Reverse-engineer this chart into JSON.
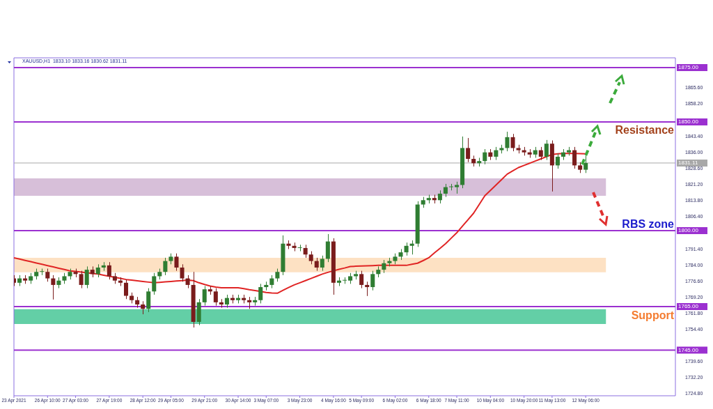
{
  "chart_data": {
    "type": "candlestick",
    "categories": [
      "23 Apr 2021",
      null,
      null,
      null,
      null,
      null,
      "26 Apr 10:00",
      null,
      null,
      null,
      null,
      "27 Apr 03:00",
      null,
      null,
      null,
      null,
      null,
      "27 Apr 19:00",
      null,
      null,
      null,
      null,
      null,
      "28 Apr 12:00",
      null,
      null,
      null,
      null,
      "29 Apr 05:00",
      null,
      null,
      null,
      null,
      null,
      "29 Apr 21:00",
      null,
      null,
      null,
      null,
      null,
      "30 Apr 14:00",
      null,
      null,
      null,
      null,
      "3 May 07:00",
      null,
      null,
      null,
      null,
      null,
      "3 May 23:00",
      null,
      null,
      null,
      null,
      null,
      "4 May 16:00",
      null,
      null,
      null,
      null,
      "5 May 09:00",
      null,
      null,
      null,
      null,
      null,
      "6 May 02:00",
      null,
      null,
      null,
      null,
      null,
      "6 May 18:00",
      null,
      null,
      null,
      null,
      "7 May 11:00",
      null,
      null,
      null,
      null,
      null,
      "10 May 04:00",
      null,
      null,
      null,
      null,
      null,
      "10 May 20:00",
      null,
      null,
      null,
      null,
      "11 May 13:00",
      null,
      null,
      null,
      null,
      null,
      "12 May 06:00",
      null,
      null,
      null,
      null,
      null,
      null,
      null,
      null,
      null,
      null,
      null,
      null,
      null,
      null,
      null,
      null
    ],
    "series": [
      {
        "ohlc": [
          [
            1778,
            1779.5,
            1774.5,
            1776
          ],
          [
            1776,
            1779.5,
            1774.5,
            1778
          ],
          [
            1778,
            1779.5,
            1775.5,
            1777
          ],
          [
            1777,
            1780.5,
            1775.5,
            1779
          ],
          [
            1779,
            1782.5,
            1777.5,
            1781
          ],
          [
            1781,
            1782.5,
            1779.5,
            1781
          ],
          [
            1781,
            1782.5,
            1776.5,
            1778
          ],
          [
            1778,
            1779.5,
            1768.3,
            1775
          ],
          [
            1775,
            1778.5,
            1773.5,
            1777
          ],
          [
            1777,
            1780.5,
            1775.5,
            1779
          ],
          [
            1779,
            1782.5,
            1777.5,
            1781
          ],
          [
            1781,
            1782.5,
            1778.5,
            1780
          ],
          [
            1780,
            1781.5,
            1773.5,
            1775
          ],
          [
            1775,
            1783.5,
            1773.5,
            1782
          ],
          [
            1782,
            1783.5,
            1778.5,
            1780
          ],
          [
            1780,
            1784.5,
            1778.5,
            1783
          ],
          [
            1783,
            1785.5,
            1781.5,
            1784
          ],
          [
            1784,
            1785.5,
            1777.5,
            1779
          ],
          [
            1779,
            1780.5,
            1775.5,
            1777
          ],
          [
            1777,
            1778.5,
            1774.5,
            1776
          ],
          [
            1776,
            1777.5,
            1768.5,
            1770
          ],
          [
            1770,
            1771.5,
            1766.5,
            1768
          ],
          [
            1768,
            1769.5,
            1764.5,
            1766
          ],
          [
            1766,
            1767.5,
            1761.5,
            1764
          ],
          [
            1764,
            1773.5,
            1762.5,
            1772
          ],
          [
            1772,
            1780.5,
            1770.5,
            1779
          ],
          [
            1779,
            1782.5,
            1777.5,
            1781
          ],
          [
            1781,
            1787.5,
            1779.5,
            1786
          ],
          [
            1786,
            1789.5,
            1784.5,
            1788
          ],
          [
            1788,
            1789.5,
            1781.5,
            1783
          ],
          [
            1783,
            1784.5,
            1776.5,
            1778
          ],
          [
            1778,
            1779.5,
            1773.5,
            1775
          ],
          [
            1775,
            1781,
            1755.4,
            1758
          ],
          [
            1758,
            1768.5,
            1756.5,
            1767
          ],
          [
            1767,
            1774.5,
            1765.5,
            1773
          ],
          [
            1773,
            1774.5,
            1770.5,
            1772
          ],
          [
            1772,
            1773.5,
            1765.5,
            1767
          ],
          [
            1767,
            1768.5,
            1764.5,
            1766
          ],
          [
            1766,
            1770.5,
            1764.5,
            1769
          ],
          [
            1769,
            1770.5,
            1766.5,
            1768
          ],
          [
            1768,
            1770.5,
            1766.5,
            1769
          ],
          [
            1769,
            1770.5,
            1766.5,
            1768
          ],
          [
            1768,
            1769.5,
            1764,
            1767
          ],
          [
            1767,
            1769.5,
            1765.5,
            1768
          ],
          [
            1768,
            1775.5,
            1766.5,
            1774
          ],
          [
            1774,
            1776.5,
            1772.5,
            1775
          ],
          [
            1775,
            1779.5,
            1773.5,
            1778
          ],
          [
            1778,
            1782.5,
            1776.5,
            1781
          ],
          [
            1781,
            1797.8,
            1779.5,
            1794
          ],
          [
            1794,
            1795.5,
            1791.5,
            1793
          ],
          [
            1793,
            1794.5,
            1790.5,
            1792
          ],
          [
            1792,
            1793.5,
            1790.5,
            1792
          ],
          [
            1792,
            1793.5,
            1787.5,
            1789
          ],
          [
            1789,
            1790.5,
            1784.5,
            1786
          ],
          [
            1786,
            1787.5,
            1781.5,
            1783
          ],
          [
            1783,
            1788.5,
            1781.5,
            1787
          ],
          [
            1787,
            1798.4,
            1785.5,
            1795
          ],
          [
            1795,
            1796.5,
            1770.5,
            1776
          ],
          [
            1776,
            1778.5,
            1774.5,
            1777
          ],
          [
            1777,
            1778.5,
            1775.5,
            1777
          ],
          [
            1777,
            1780.5,
            1775.5,
            1779
          ],
          [
            1779,
            1781.5,
            1777.5,
            1780
          ],
          [
            1780,
            1781.5,
            1773.5,
            1775
          ],
          [
            1775,
            1776.5,
            1769.9,
            1774
          ],
          [
            1774,
            1781.5,
            1772.5,
            1780
          ],
          [
            1780,
            1783.5,
            1778.5,
            1782
          ],
          [
            1782,
            1786.5,
            1780.5,
            1785
          ],
          [
            1785,
            1787.5,
            1783.5,
            1786
          ],
          [
            1786,
            1789.5,
            1784.5,
            1788
          ],
          [
            1788,
            1791.5,
            1786.5,
            1790
          ],
          [
            1790,
            1794.5,
            1788.5,
            1793
          ],
          [
            1793,
            1795.5,
            1789,
            1794
          ],
          [
            1794,
            1813.5,
            1792.5,
            1812
          ],
          [
            1812,
            1815.5,
            1810.5,
            1814
          ],
          [
            1814,
            1816.5,
            1812.5,
            1815
          ],
          [
            1815,
            1816.5,
            1812.5,
            1814
          ],
          [
            1814,
            1818.5,
            1812.5,
            1817
          ],
          [
            1817,
            1821.5,
            1815.5,
            1820
          ],
          [
            1820,
            1821.5,
            1818.5,
            1820
          ],
          [
            1820,
            1822.5,
            1817,
            1821
          ],
          [
            1821,
            1843.3,
            1819.5,
            1838
          ],
          [
            1838,
            1842.6,
            1831.5,
            1833
          ],
          [
            1833,
            1834.5,
            1829.5,
            1831
          ],
          [
            1831,
            1833.5,
            1829.5,
            1832
          ],
          [
            1832,
            1837.5,
            1830.5,
            1836
          ],
          [
            1836,
            1837.5,
            1832.5,
            1834
          ],
          [
            1834,
            1838.5,
            1832.5,
            1837
          ],
          [
            1837,
            1839.5,
            1835.5,
            1838
          ],
          [
            1838,
            1845.5,
            1836.5,
            1843
          ],
          [
            1843,
            1844.5,
            1836.5,
            1838
          ],
          [
            1838,
            1839.5,
            1835.5,
            1837
          ],
          [
            1837,
            1838.5,
            1834.5,
            1836
          ],
          [
            1836,
            1837.5,
            1833.5,
            1835
          ],
          [
            1835,
            1838.5,
            1833.5,
            1837
          ],
          [
            1837,
            1838.5,
            1832.5,
            1834
          ],
          [
            1834,
            1841.7,
            1832.5,
            1840
          ],
          [
            1840,
            1841.5,
            1818,
            1830
          ],
          [
            1830,
            1835.5,
            1828.5,
            1834
          ],
          [
            1834,
            1837.5,
            1832.5,
            1836
          ],
          [
            1836,
            1838.5,
            1834.5,
            1837
          ],
          [
            1837,
            1838.5,
            1828.5,
            1830
          ],
          [
            1830,
            1831.5,
            1826.5,
            1828
          ],
          [
            1828,
            1834.5,
            1826.5,
            1831.11
          ],
          null,
          null,
          null,
          null,
          null,
          null,
          null,
          null,
          null,
          null,
          null,
          null,
          null,
          null,
          null,
          null
        ],
        "colors": [
          "#7a1c1c",
          "#2f7d32",
          "#7a1c1c",
          "#2f7d32",
          "#2f7d32",
          "#2f7d32",
          "#7a1c1c",
          "#7a1c1c",
          "#2f7d32",
          "#2f7d32",
          "#2f7d32",
          "#7a1c1c",
          "#7a1c1c",
          "#2f7d32",
          "#7a1c1c",
          "#2f7d32",
          "#2f7d32",
          "#7a1c1c",
          "#7a1c1c",
          "#7a1c1c",
          "#7a1c1c",
          "#7a1c1c",
          "#7a1c1c",
          "#7a1c1c",
          "#2f7d32",
          "#2f7d32",
          "#2f7d32",
          "#2f7d32",
          "#2f7d32",
          "#7a1c1c",
          "#7a1c1c",
          "#7a1c1c",
          "#7a1c1c",
          "#2f7d32",
          "#2f7d32",
          "#7a1c1c",
          "#7a1c1c",
          "#7a1c1c",
          "#2f7d32",
          "#7a1c1c",
          "#2f7d32",
          "#7a1c1c",
          "#7a1c1c",
          "#2f7d32",
          "#2f7d32",
          "#2f7d32",
          "#2f7d32",
          "#2f7d32",
          "#2f7d32",
          "#7a1c1c",
          "#7a1c1c",
          "#2f7d32",
          "#7a1c1c",
          "#7a1c1c",
          "#7a1c1c",
          "#2f7d32",
          "#2f7d32",
          "#7a1c1c",
          "#2f7d32",
          "#2f7d32",
          "#2f7d32",
          "#2f7d32",
          "#7a1c1c",
          "#7a1c1c",
          "#2f7d32",
          "#2f7d32",
          "#2f7d32",
          "#2f7d32",
          "#2f7d32",
          "#2f7d32",
          "#2f7d32",
          "#2f7d32",
          "#2f7d32",
          "#2f7d32",
          "#2f7d32",
          "#7a1c1c",
          "#2f7d32",
          "#2f7d32",
          "#2f7d32",
          "#2f7d32",
          "#2f7d32",
          "#7a1c1c",
          "#7a1c1c",
          "#2f7d32",
          "#2f7d32",
          "#7a1c1c",
          "#2f7d32",
          "#2f7d32",
          "#2f7d32",
          "#7a1c1c",
          "#7a1c1c",
          "#7a1c1c",
          "#7a1c1c",
          "#2f7d32",
          "#7a1c1c",
          "#2f7d32",
          "#7a1c1c",
          "#2f7d32",
          "#2f7d32",
          "#2f7d32",
          "#7a1c1c",
          "#7a1c1c",
          "#2f7d32",
          null,
          null,
          null,
          null,
          null,
          null,
          null,
          null,
          null,
          null,
          null,
          null,
          null,
          null,
          null,
          null
        ]
      },
      {
        "type": "line",
        "color": "#e02424",
        "values": [
          1787.5,
          1786.9,
          1786.3,
          1785.7,
          1785.1,
          1784.5,
          1783.9,
          1783.3,
          1782.7,
          1782.1,
          1781.5,
          1781.2,
          1780.9,
          1780.6,
          1780.3,
          1780,
          1779.5,
          1779,
          1778.5,
          1778,
          1777.5,
          1777.2,
          1776.9,
          1776.6,
          1776.3,
          1776,
          1776.2,
          1776.4,
          1776.6,
          1776.8,
          1777,
          1777.2,
          1777,
          1776,
          1775.2,
          1774.5,
          1774,
          1773.7,
          1773.7,
          1773.7,
          1773.7,
          1773.3,
          1772.8,
          1772.4,
          1772,
          1771.5,
          1771.3,
          1771.2,
          1772.5,
          1773.8,
          1775,
          1776,
          1777,
          1778,
          1779,
          1780,
          1780.8,
          1781.5,
          1782.2,
          1782.8,
          1783.5,
          1783.6,
          1783.7,
          1783.8,
          1783.9,
          1784,
          1784,
          1784,
          1784,
          1784,
          1784,
          1784.5,
          1785,
          1786.2,
          1787.5,
          1789.7,
          1791.8,
          1794,
          1796.5,
          1799,
          1802,
          1805,
          1808,
          1812,
          1816,
          1818.5,
          1821,
          1823.5,
          1826,
          1827.5,
          1829,
          1830,
          1831,
          1832,
          1833,
          1834,
          1835,
          1835.3,
          1835.5,
          1835.5,
          1835.5,
          1835.4,
          1835.3,
          null,
          null,
          null,
          null,
          null,
          null,
          null,
          null,
          null,
          null,
          null,
          null,
          null,
          null,
          null,
          null
        ]
      }
    ],
    "ylim": [
      1724,
      1879.5
    ],
    "yticks": [
      {
        "value": 1724.8,
        "label": "1724.80"
      },
      {
        "value": 1732.2,
        "label": "1732.20"
      },
      {
        "value": 1739.6,
        "label": "1739.60"
      },
      {
        "value": 1754.4,
        "label": "1754.40"
      },
      {
        "value": 1761.8,
        "label": "1761.80"
      },
      {
        "value": 1769.2,
        "label": "1769.20"
      },
      {
        "value": 1776.6,
        "label": "1776.60"
      },
      {
        "value": 1784,
        "label": "1784.00"
      },
      {
        "value": 1791.4,
        "label": "1791.40"
      },
      {
        "value": 1806.4,
        "label": "1806.40"
      },
      {
        "value": 1813.8,
        "label": "1813.80"
      },
      {
        "value": 1821.2,
        "label": "1821.20"
      },
      {
        "value": 1828.6,
        "label": "1828.60"
      },
      {
        "value": 1836,
        "label": "1836.00"
      },
      {
        "value": 1843.4,
        "label": "1843.40"
      },
      {
        "value": 1858.2,
        "label": "1858.20"
      },
      {
        "value": 1865.6,
        "label": "1865.60"
      }
    ],
    "ref_lines": [
      {
        "axis": "y",
        "value": 1875,
        "label": "1875.00",
        "color": "#9b30d0"
      },
      {
        "axis": "y",
        "value": 1850,
        "label": "1850.00",
        "color": "#9b30d0"
      },
      {
        "axis": "y",
        "value": 1800,
        "label": "1800.00",
        "color": "#9b30d0"
      },
      {
        "axis": "y",
        "value": 1765,
        "label": "1765.00",
        "color": "#9b30d0"
      },
      {
        "axis": "y",
        "value": 1745,
        "label": "1745.00",
        "color": "#9b30d0"
      },
      {
        "axis": "y",
        "value": 1831.11,
        "label": "1831.11",
        "color": "#a8a8a8"
      }
    ],
    "bands": [
      {
        "axis": "y",
        "from": 1816,
        "to": 1824,
        "color": "#d7bfd9"
      },
      {
        "axis": "y",
        "from": 1780.8,
        "to": 1787.5,
        "color": "#fde1c3"
      },
      {
        "axis": "y",
        "from": 1757,
        "to": 1763.8,
        "color": "#63cfa6"
      }
    ],
    "annotations": [
      "XAUUSD,H1  1833.10 1833.16 1830.62 1831.11",
      "Resistance",
      "RBS zone",
      "Support"
    ],
    "legend": false,
    "grid": false
  }
}
